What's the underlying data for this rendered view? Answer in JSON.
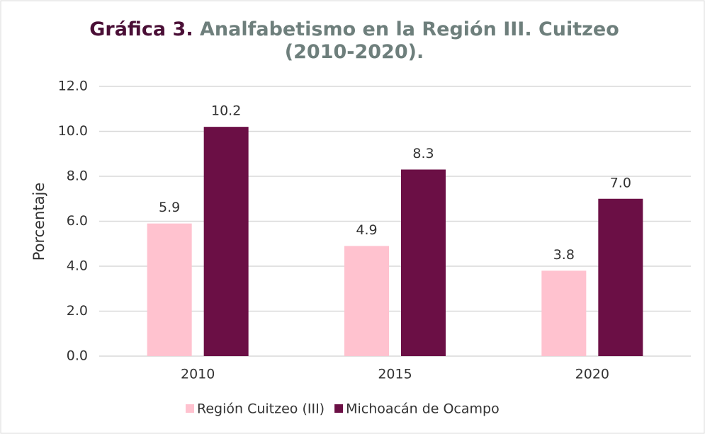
{
  "chart_data": {
    "type": "bar",
    "title_label": "Gráfica 3.",
    "title": "Analfabetismo en la Región III. Cuitzeo (2010-2020).",
    "y_label": "Porcentaje",
    "categories": [
      "2010",
      "2015",
      "2020"
    ],
    "series": [
      {
        "name": "Región Cuitzeo (III)",
        "color": "#ffc2cf",
        "values": [
          5.9,
          4.9,
          3.8
        ],
        "value_labels": [
          "5.9",
          "4.9",
          "3.8"
        ]
      },
      {
        "name": "Michoacán de Ocampo",
        "color": "#6b0f45",
        "values": [
          10.2,
          8.3,
          7.0
        ],
        "value_labels": [
          "10.2",
          "8.3",
          "7.0"
        ]
      }
    ],
    "ylim": [
      0,
      12
    ],
    "yticks": [
      {
        "value": 0,
        "label": "0.0"
      },
      {
        "value": 2,
        "label": "2.0"
      },
      {
        "value": 4,
        "label": "4.0"
      },
      {
        "value": 6,
        "label": "6.0"
      },
      {
        "value": 8,
        "label": "8.0"
      },
      {
        "value": 10,
        "label": "10.0"
      },
      {
        "value": 12,
        "label": "12.0"
      }
    ],
    "grid": true,
    "legend": "bottom"
  }
}
